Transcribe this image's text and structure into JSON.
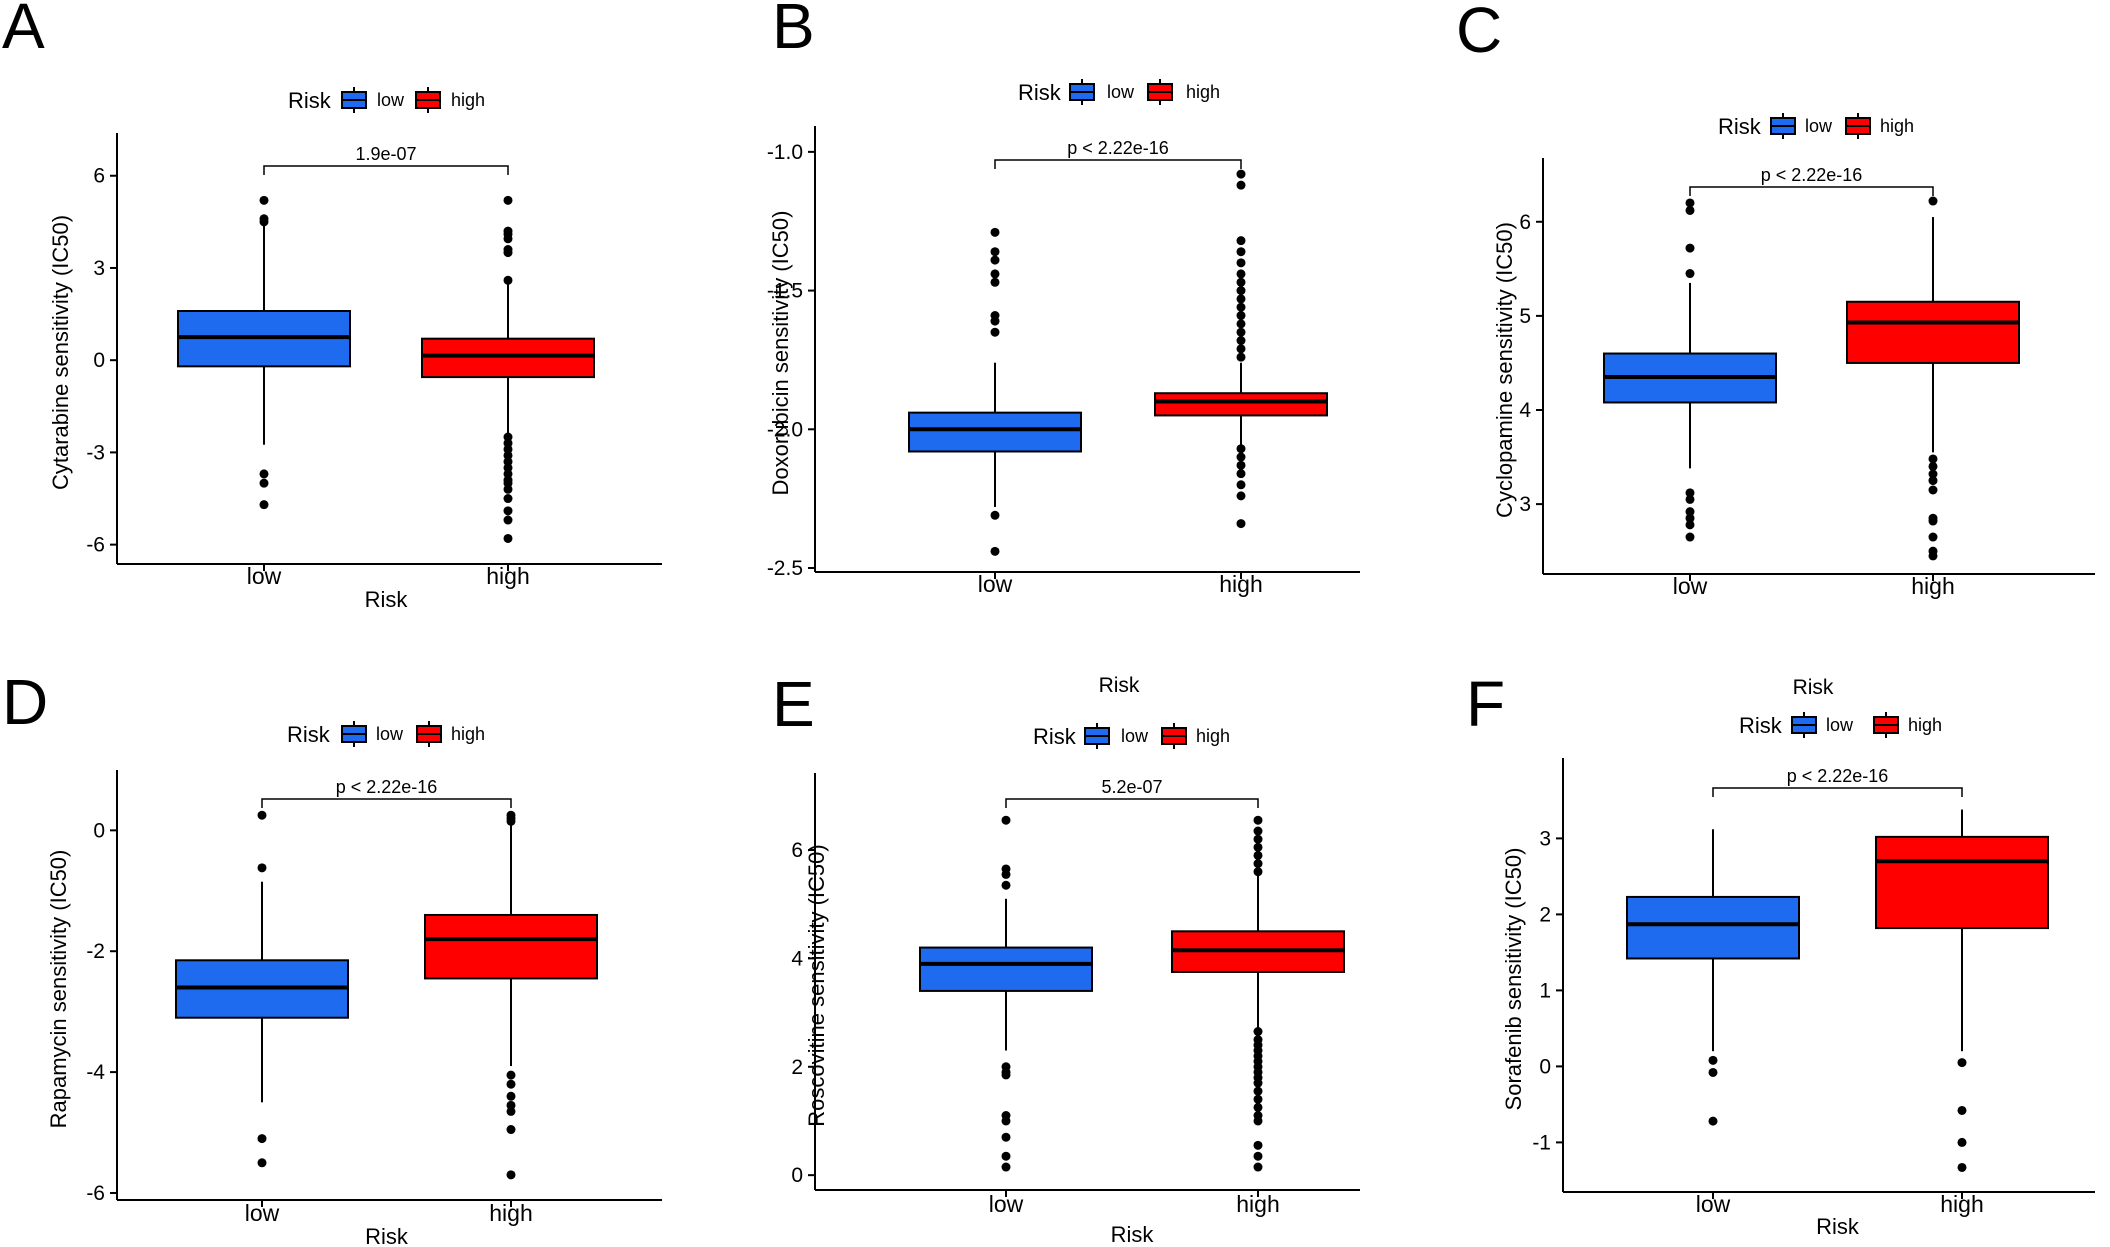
{
  "figure": {
    "colors": {
      "low": "#1F6BF0",
      "high": "#FF0000"
    }
  },
  "chart_data": [
    {
      "panel": "A",
      "type": "box",
      "legend_title": "Risk",
      "legend_labels": [
        "low",
        "high"
      ],
      "categories": [
        "low",
        "high"
      ],
      "xlabel": "Risk",
      "ylabel": "Cytarabine sensitivity (IC50)",
      "ylim": [
        -6.5,
        7.0
      ],
      "yticks": [
        "6",
        "3",
        "0",
        "-3",
        "-6"
      ],
      "ytick_values": [
        6,
        3,
        0,
        -3,
        -6
      ],
      "p_label": "1.9e-07",
      "boxes": [
        {
          "group": "low",
          "q1": -0.2,
          "median": 0.75,
          "q3": 1.6,
          "whisker_low": -2.75,
          "whisker_high": 4.4,
          "outliers": [
            5.2,
            4.6,
            4.5,
            -3.7,
            -4.0,
            -4.7
          ]
        },
        {
          "group": "high",
          "q1": -0.55,
          "median": 0.15,
          "q3": 0.7,
          "whisker_low": -2.4,
          "whisker_high": 2.55,
          "outliers": [
            5.2,
            4.2,
            4.1,
            3.95,
            3.6,
            3.5,
            2.6,
            -2.5,
            -2.7,
            -2.9,
            -3.1,
            -3.3,
            -3.5,
            -3.7,
            -3.9,
            -4.0,
            -4.2,
            -4.5,
            -4.9,
            -5.2,
            -5.8
          ]
        }
      ]
    },
    {
      "panel": "B",
      "type": "box",
      "legend_title": "Risk",
      "legend_labels": [
        "low",
        "high"
      ],
      "categories": [
        "low",
        "high"
      ],
      "xlabel": "Risk",
      "ylabel": "Doxorubicin sensitivity (IC50)",
      "ylim": [
        -2.5,
        -0.95
      ],
      "yticks": [
        "-1.0",
        "-1.5",
        "-2.0",
        "-2.5"
      ],
      "ytick_values": [
        -1.0,
        -1.5,
        -2.0,
        -2.5
      ],
      "p_label": "p < 2.22e-16",
      "boxes": [
        {
          "group": "low",
          "q1": -2.08,
          "median": -2.0,
          "q3": -1.94,
          "whisker_low": -2.28,
          "whisker_high": -1.76,
          "outliers": [
            -1.29,
            -1.36,
            -1.39,
            -1.44,
            -1.47,
            -1.59,
            -1.61,
            -1.65,
            -2.31,
            -2.44
          ]
        },
        {
          "group": "high",
          "q1": -1.95,
          "median": -1.9,
          "q3": -1.87,
          "whisker_low": -2.06,
          "whisker_high": -1.76,
          "outliers": [
            -1.08,
            -1.12,
            -1.32,
            -1.36,
            -1.4,
            -1.44,
            -1.47,
            -1.5,
            -1.53,
            -1.56,
            -1.59,
            -1.62,
            -1.65,
            -1.68,
            -1.71,
            -1.74,
            -2.07,
            -2.1,
            -2.13,
            -2.16,
            -2.2,
            -2.24,
            -2.34
          ]
        }
      ]
    },
    {
      "panel": "C",
      "type": "box",
      "legend_title": "Risk",
      "legend_labels": [
        "low",
        "high"
      ],
      "categories": [
        "low",
        "high"
      ],
      "xlabel": "",
      "ylabel": "Cyclopamine sensitivity (IC50)",
      "ylim": [
        2.3,
        6.55
      ],
      "yticks": [
        "6",
        "5",
        "4",
        "3"
      ],
      "ytick_values": [
        6,
        5,
        4,
        3
      ],
      "p_label": "p < 2.22e-16",
      "boxes": [
        {
          "group": "low",
          "q1": 4.08,
          "median": 4.35,
          "q3": 4.6,
          "whisker_low": 3.38,
          "whisker_high": 5.35,
          "outliers": [
            6.2,
            6.12,
            5.72,
            5.45,
            3.12,
            3.05,
            2.92,
            2.85,
            2.78,
            2.65
          ]
        },
        {
          "group": "high",
          "q1": 4.5,
          "median": 4.93,
          "q3": 5.15,
          "whisker_low": 3.55,
          "whisker_high": 6.05,
          "outliers": [
            6.22,
            3.48,
            3.4,
            3.32,
            3.25,
            3.15,
            2.85,
            2.82,
            2.65,
            2.5,
            2.45
          ]
        }
      ]
    },
    {
      "panel": "D",
      "type": "box",
      "legend_title": "Risk",
      "legend_labels": [
        "low",
        "high"
      ],
      "categories": [
        "low",
        "high"
      ],
      "xlabel": "Risk",
      "ylabel": "Rapamycin sensitivity (IC50)",
      "ylim": [
        -6.05,
        0.8
      ],
      "yticks": [
        "0",
        "-2",
        "-4",
        "-6"
      ],
      "ytick_values": [
        0,
        -2,
        -4,
        -6
      ],
      "p_label": "p < 2.22e-16",
      "boxes": [
        {
          "group": "low",
          "q1": -3.1,
          "median": -2.6,
          "q3": -2.15,
          "whisker_low": -4.5,
          "whisker_high": -0.85,
          "outliers": [
            0.25,
            -0.62,
            -5.1,
            -5.5
          ]
        },
        {
          "group": "high",
          "q1": -2.45,
          "median": -1.8,
          "q3": -1.4,
          "whisker_low": -3.9,
          "whisker_high": 0.1,
          "outliers": [
            0.25,
            0.2,
            0.15,
            -4.05,
            -4.2,
            -4.4,
            -4.55,
            -4.65,
            -4.95,
            -5.7
          ]
        }
      ]
    },
    {
      "panel": "E",
      "type": "box",
      "extra_title": "Risk",
      "legend_title": "Risk",
      "legend_labels": [
        "low",
        "high"
      ],
      "categories": [
        "low",
        "high"
      ],
      "xlabel": "Risk",
      "ylabel": "Roscovitine sensitivity (IC50)",
      "ylim": [
        -0.2,
        7.2
      ],
      "yticks": [
        "6",
        "4",
        "2",
        "0"
      ],
      "ytick_values": [
        6,
        4,
        2,
        0
      ],
      "p_label": "5.2e-07",
      "boxes": [
        {
          "group": "low",
          "q1": 3.4,
          "median": 3.9,
          "q3": 4.2,
          "whisker_low": 2.3,
          "whisker_high": 5.1,
          "outliers": [
            6.55,
            5.65,
            5.55,
            5.35,
            2.0,
            1.9,
            1.85,
            1.1,
            1.0,
            0.7,
            0.35,
            0.15
          ]
        },
        {
          "group": "high",
          "q1": 3.75,
          "median": 4.15,
          "q3": 4.5,
          "whisker_low": 2.7,
          "whisker_high": 5.6,
          "outliers": [
            6.55,
            6.35,
            6.2,
            6.05,
            5.9,
            5.75,
            5.6,
            2.65,
            2.5,
            2.4,
            2.3,
            2.2,
            2.1,
            2.0,
            1.9,
            1.8,
            1.7,
            1.55,
            1.4,
            1.25,
            1.1,
            1.0,
            0.55,
            0.35,
            0.15
          ]
        }
      ]
    },
    {
      "panel": "F",
      "type": "box",
      "extra_title": "Risk",
      "legend_title": "Risk",
      "legend_labels": [
        "low",
        "high"
      ],
      "categories": [
        "low",
        "high"
      ],
      "xlabel": "Risk",
      "ylabel": "Sorafenib sensitivity (IC50)",
      "ylim": [
        -1.6,
        3.9
      ],
      "yticks": [
        "3",
        "2",
        "1",
        "0",
        "-1"
      ],
      "ytick_values": [
        3,
        2,
        1,
        0,
        -1
      ],
      "p_label": "p < 2.22e-16",
      "boxes": [
        {
          "group": "low",
          "q1": 1.42,
          "median": 1.87,
          "q3": 2.23,
          "whisker_low": 0.2,
          "whisker_high": 3.12,
          "outliers": [
            0.08,
            -0.08,
            -0.72
          ]
        },
        {
          "group": "high",
          "q1": 1.82,
          "median": 2.7,
          "q3": 3.02,
          "whisker_low": 0.2,
          "whisker_high": 3.38,
          "outliers": [
            0.05,
            -0.58,
            -1.0,
            -1.33
          ]
        }
      ]
    }
  ]
}
